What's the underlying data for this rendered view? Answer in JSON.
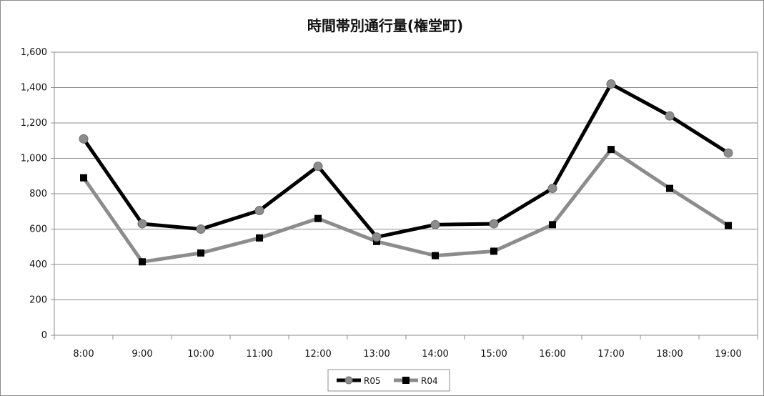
{
  "chart_data": {
    "type": "line",
    "title": "時間帯別通行量(権堂町)",
    "xlabel": "",
    "ylabel": "",
    "categories": [
      "8:00",
      "9:00",
      "10:00",
      "11:00",
      "12:00",
      "13:00",
      "14:00",
      "15:00",
      "16:00",
      "17:00",
      "18:00",
      "19:00"
    ],
    "ylim": [
      0,
      1600
    ],
    "yticks": [
      0,
      200,
      400,
      600,
      800,
      1000,
      1200,
      1400,
      1600
    ],
    "ytick_labels": [
      "0",
      "200",
      "400",
      "600",
      "800",
      "1,000",
      "1,200",
      "1,400",
      "1,600"
    ],
    "grid": "horizontal",
    "legend_position": "bottom",
    "series": [
      {
        "name": "R05",
        "line_color": "#000000",
        "marker": "circle",
        "marker_color": "#8c8c8c",
        "values": [
          1110,
          630,
          600,
          705,
          955,
          555,
          625,
          630,
          830,
          1420,
          1240,
          1030
        ]
      },
      {
        "name": "R04",
        "line_color": "#8c8c8c",
        "marker": "square",
        "marker_color": "#000000",
        "values": [
          890,
          415,
          465,
          550,
          660,
          530,
          450,
          475,
          625,
          1050,
          830,
          620
        ]
      }
    ]
  }
}
